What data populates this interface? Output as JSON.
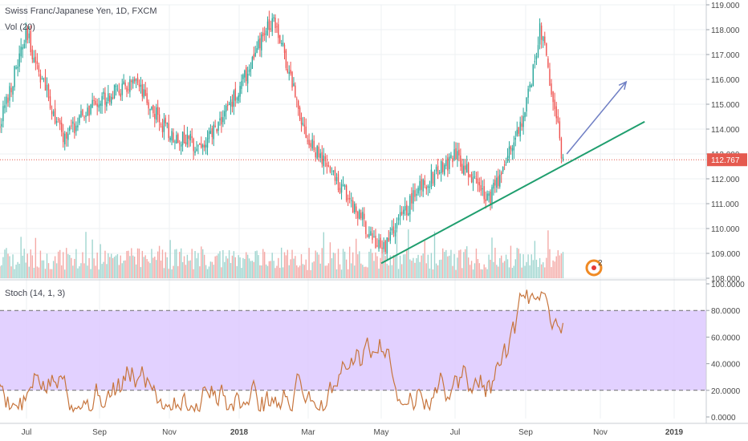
{
  "header": {
    "title": "Swiss Franc/Japanese Yen, 1D, FXCM",
    "volume_label": "Vol (20)",
    "stoch_label": "Stoch (14, 1, 3)"
  },
  "colors": {
    "up": "#26a69a",
    "down": "#ef5350",
    "up_volume": "#9fd5cf",
    "down_volume": "#f4a9a6",
    "trendline": "#1f9e6e",
    "arrow": "#6f7fc4",
    "price_line": "#e55a4f",
    "stoch_line": "#c7753d",
    "stoch_band": "#ddc9ff",
    "grid": "#eef0f3",
    "axis_text": "#4a4a4a",
    "event_badge": "#f08a24"
  },
  "chart_data": [
    {
      "type": "candlestick",
      "title": "Swiss Franc/Japanese Yen, 1D, FXCM",
      "x_labels": [
        "Jul",
        "Sep",
        "Nov",
        "2018",
        "Mar",
        "May",
        "Jul",
        "Sep",
        "Nov",
        "2019"
      ],
      "y_ticks": [
        "108.000",
        "109.000",
        "110.000",
        "111.000",
        "112.000",
        "113.000",
        "114.000",
        "115.000",
        "116.000",
        "117.000",
        "118.000",
        "119.000"
      ],
      "ylim": [
        108,
        119
      ],
      "last_price": "112.767",
      "close_series_by_month": [
        {
          "x": "Jun 2017",
          "y": 113.0
        },
        {
          "x": "Jul 2017",
          "y": 117.8
        },
        {
          "x": "Aug 2017",
          "y": 113.6
        },
        {
          "x": "Sep 2017",
          "y": 115.2
        },
        {
          "x": "Oct 2017",
          "y": 115.8
        },
        {
          "x": "Nov 2017",
          "y": 113.8
        },
        {
          "x": "Dec 2017",
          "y": 113.3
        },
        {
          "x": "Jan 2018",
          "y": 115.6
        },
        {
          "x": "Feb 2018",
          "y": 118.6
        },
        {
          "x": "Mar 2018",
          "y": 113.5
        },
        {
          "x": "Apr 2018",
          "y": 111.5
        },
        {
          "x": "May 2018",
          "y": 109.1
        },
        {
          "x": "Jun 2018",
          "y": 111.6
        },
        {
          "x": "Jul 2018",
          "y": 112.9
        },
        {
          "x": "Aug 2018",
          "y": 111.2
        },
        {
          "x": "Sep 2018",
          "y": 114.8
        },
        {
          "x": "Sep 2018 peak",
          "y": 118.1
        },
        {
          "x": "Oct 2018",
          "y": 112.77
        }
      ],
      "trendline": {
        "from": {
          "x": "May 2018",
          "y": 108.6
        },
        "to": {
          "x": "Dec 2018",
          "y": 114.3
        }
      },
      "projection_arrow": {
        "from": {
          "x": "Oct 2018",
          "y": 113.0
        },
        "to": {
          "x": "Dec 2018",
          "y": 115.9
        }
      },
      "volume_label": "Vol (20)",
      "event_badge": "2"
    },
    {
      "type": "line",
      "title": "Stoch (14, 1, 3)",
      "y_ticks": [
        "0.0000",
        "20.0000",
        "40.0000",
        "60.0000",
        "80.0000",
        "100.0000"
      ],
      "ylim": [
        0,
        100
      ],
      "reference_lines": [
        20,
        80
      ],
      "shaded_band": [
        20,
        80
      ]
    }
  ]
}
